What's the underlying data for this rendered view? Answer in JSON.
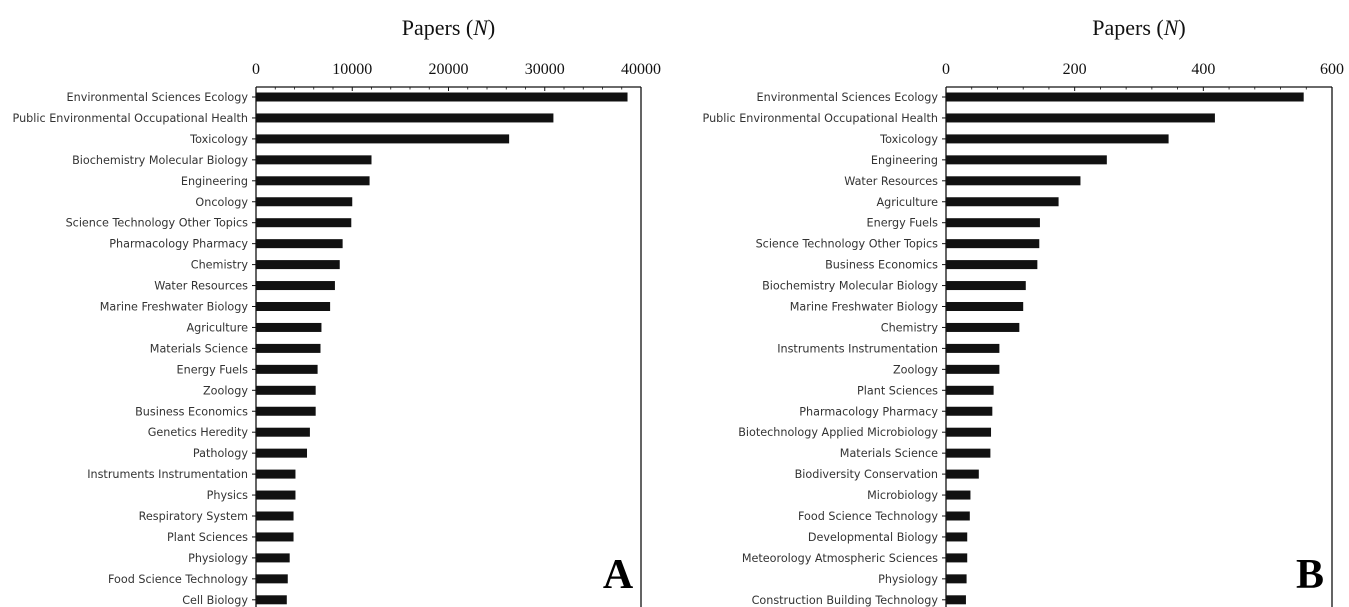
{
  "chart_data": [
    {
      "type": "bar",
      "orientation": "horizontal",
      "panel_label": "A",
      "xlabel_text": "Papers (",
      "xlabel_var": "N",
      "xlabel_close": ")",
      "xlim": [
        0,
        40000
      ],
      "x_ticks": [
        "0",
        "10000",
        "20000",
        "30000",
        "40000"
      ],
      "x_tick_values": [
        0,
        10000,
        20000,
        30000,
        40000
      ],
      "bar_color": "#111111",
      "categories": [
        "Environmental Sciences Ecology",
        "Public Environmental Occupational Health",
        "Toxicology",
        "Biochemistry Molecular Biology",
        "Engineering",
        "Oncology",
        "Science Technology Other Topics",
        "Pharmacology Pharmacy",
        "Chemistry",
        "Water Resources",
        "Marine Freshwater Biology",
        "Agriculture",
        "Materials Science",
        "Energy Fuels",
        "Zoology",
        "Business Economics",
        "Genetics Heredity",
        "Pathology",
        "Instruments Instrumentation",
        "Physics",
        "Respiratory System",
        "Plant Sciences",
        "Physiology",
        "Food Science Technology",
        "Cell Biology"
      ],
      "values": [
        38600,
        30900,
        26300,
        12000,
        11800,
        10000,
        9900,
        9000,
        8700,
        8200,
        7700,
        6800,
        6700,
        6400,
        6200,
        6200,
        5600,
        5300,
        4100,
        4100,
        3900,
        3900,
        3500,
        3300,
        3200
      ]
    },
    {
      "type": "bar",
      "orientation": "horizontal",
      "panel_label": "B",
      "xlabel_text": "Papers (",
      "xlabel_var": "N",
      "xlabel_close": ")",
      "xlim": [
        0,
        600
      ],
      "x_ticks": [
        "0",
        "200",
        "400",
        "600"
      ],
      "x_tick_values": [
        0,
        200,
        400,
        600
      ],
      "bar_color": "#111111",
      "categories": [
        "Environmental Sciences Ecology",
        "Public Environmental Occupational Health",
        "Toxicology",
        "Engineering",
        "Water Resources",
        "Agriculture",
        "Energy Fuels",
        "Science Technology Other Topics",
        "Business Economics",
        "Biochemistry Molecular Biology",
        "Marine Freshwater Biology",
        "Chemistry",
        "Instruments Instrumentation",
        "Zoology",
        "Plant Sciences",
        "Pharmacology Pharmacy",
        "Biotechnology Applied Microbiology",
        "Materials Science",
        "Biodiversity Conservation",
        "Microbiology",
        "Food Science Technology",
        "Developmental Biology",
        "Meteorology Atmospheric Sciences",
        "Physiology",
        "Construction Building Technology"
      ],
      "values": [
        556,
        418,
        346,
        250,
        209,
        175,
        146,
        145,
        142,
        124,
        120,
        114,
        83,
        83,
        74,
        72,
        70,
        69,
        51,
        38,
        37,
        33,
        33,
        32,
        31
      ]
    }
  ]
}
